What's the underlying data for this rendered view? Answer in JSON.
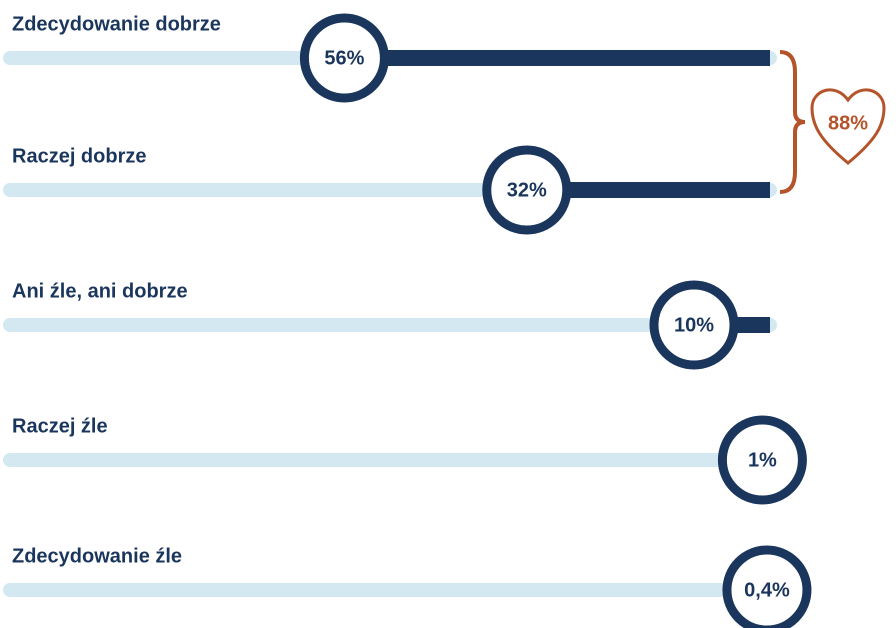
{
  "chart_data": {
    "type": "bar",
    "categories": [
      "Zdecydowanie dobrze",
      "Raczej dobrze",
      "Ani źle, ani dobrze",
      "Raczej źle",
      "Zdecydowanie źle"
    ],
    "values": [
      56,
      32,
      10,
      1,
      0.4
    ],
    "value_labels": [
      "56%",
      "32%",
      "10%",
      "1%",
      "0,4%"
    ],
    "color": "#1b365d",
    "track_color": "#d3e8f1",
    "xlim": [
      0,
      100
    ],
    "annotation": "88%",
    "annotation_color": "#b5532a"
  }
}
